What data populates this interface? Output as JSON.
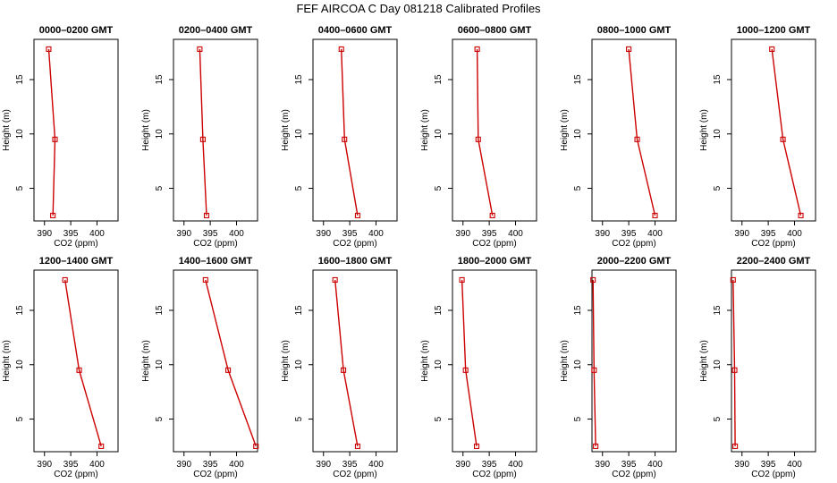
{
  "title": "FEF AIRCOA C  Day 081218  Calibrated Profiles",
  "colors": {
    "profile": "#cc0000",
    "axis": "#000000"
  },
  "chart_data": [
    {
      "type": "line",
      "title": "0000–0200 GMT",
      "xlabel": "CO2 (ppm)",
      "ylabel": "Height (m)",
      "x_ticks": [
        "390",
        "395",
        "400"
      ],
      "y_ticks": [
        "5",
        "10",
        "15"
      ],
      "xlim": [
        388,
        404
      ],
      "ylim": [
        2,
        18.7
      ],
      "series": [
        {
          "points": [
            [
              390.8,
              17.8
            ],
            [
              392.0,
              9.5
            ],
            [
              391.6,
              2.5
            ]
          ]
        }
      ]
    },
    {
      "type": "line",
      "title": "0200–0400 GMT",
      "xlabel": "CO2 (ppm)",
      "ylabel": "Height (m)",
      "x_ticks": [
        "390",
        "395",
        "400"
      ],
      "y_ticks": [
        "5",
        "10",
        "15"
      ],
      "xlim": [
        388,
        404
      ],
      "ylim": [
        2,
        18.7
      ],
      "series": [
        {
          "points": [
            [
              393.0,
              17.8
            ],
            [
              393.6,
              9.5
            ],
            [
              394.3,
              2.5
            ]
          ]
        }
      ]
    },
    {
      "type": "line",
      "title": "0400–0600 GMT",
      "xlabel": "CO2 (ppm)",
      "ylabel": "Height (m)",
      "x_ticks": [
        "390",
        "395",
        "400"
      ],
      "y_ticks": [
        "5",
        "10",
        "15"
      ],
      "xlim": [
        388,
        404
      ],
      "ylim": [
        2,
        18.7
      ],
      "series": [
        {
          "points": [
            [
              393.4,
              17.8
            ],
            [
              394.0,
              9.5
            ],
            [
              396.5,
              2.5
            ]
          ]
        }
      ]
    },
    {
      "type": "line",
      "title": "0600–0800 GMT",
      "xlabel": "CO2 (ppm)",
      "ylabel": "Height (m)",
      "x_ticks": [
        "390",
        "395",
        "400"
      ],
      "y_ticks": [
        "5",
        "10",
        "15"
      ],
      "xlim": [
        388,
        404
      ],
      "ylim": [
        2,
        18.7
      ],
      "series": [
        {
          "points": [
            [
              392.7,
              17.8
            ],
            [
              392.9,
              9.5
            ],
            [
              395.6,
              2.5
            ]
          ]
        }
      ]
    },
    {
      "type": "line",
      "title": "0800–1000 GMT",
      "xlabel": "CO2 (ppm)",
      "ylabel": "Height (m)",
      "x_ticks": [
        "390",
        "395",
        "400"
      ],
      "y_ticks": [
        "5",
        "10",
        "15"
      ],
      "xlim": [
        388,
        404
      ],
      "ylim": [
        2,
        18.7
      ],
      "series": [
        {
          "points": [
            [
              395.0,
              17.8
            ],
            [
              396.6,
              9.5
            ],
            [
              400.0,
              2.5
            ]
          ]
        }
      ]
    },
    {
      "type": "line",
      "title": "1000–1200 GMT",
      "xlabel": "CO2 (ppm)",
      "ylabel": "Height (m)",
      "x_ticks": [
        "390",
        "395",
        "400"
      ],
      "y_ticks": [
        "5",
        "10",
        "15"
      ],
      "xlim": [
        388,
        404
      ],
      "ylim": [
        2,
        18.7
      ],
      "series": [
        {
          "points": [
            [
              395.7,
              17.8
            ],
            [
              397.8,
              9.5
            ],
            [
              401.2,
              2.5
            ]
          ]
        }
      ]
    },
    {
      "type": "line",
      "title": "1200–1400 GMT",
      "xlabel": "CO2 (ppm)",
      "ylabel": "Height (m)",
      "x_ticks": [
        "390",
        "395",
        "400"
      ],
      "y_ticks": [
        "5",
        "10",
        "15"
      ],
      "xlim": [
        388,
        404
      ],
      "ylim": [
        2,
        18.7
      ],
      "series": [
        {
          "points": [
            [
              393.9,
              17.8
            ],
            [
              396.6,
              9.5
            ],
            [
              400.8,
              2.5
            ]
          ]
        }
      ]
    },
    {
      "type": "line",
      "title": "1400–1600 GMT",
      "xlabel": "CO2 (ppm)",
      "ylabel": "Height (m)",
      "x_ticks": [
        "390",
        "395",
        "400"
      ],
      "y_ticks": [
        "5",
        "10",
        "15"
      ],
      "xlim": [
        388,
        404
      ],
      "ylim": [
        2,
        18.7
      ],
      "series": [
        {
          "points": [
            [
              394.1,
              17.8
            ],
            [
              398.4,
              9.5
            ],
            [
              403.7,
              2.5
            ]
          ]
        }
      ]
    },
    {
      "type": "line",
      "title": "1600–1800 GMT",
      "xlabel": "CO2 (ppm)",
      "ylabel": "Height (m)",
      "x_ticks": [
        "390",
        "395",
        "400"
      ],
      "y_ticks": [
        "5",
        "10",
        "15"
      ],
      "xlim": [
        388,
        404
      ],
      "ylim": [
        2,
        18.7
      ],
      "series": [
        {
          "points": [
            [
              392.2,
              17.8
            ],
            [
              393.8,
              9.5
            ],
            [
              396.5,
              2.5
            ]
          ]
        }
      ]
    },
    {
      "type": "line",
      "title": "1800–2000 GMT",
      "xlabel": "CO2 (ppm)",
      "ylabel": "Height (m)",
      "x_ticks": [
        "390",
        "395",
        "400"
      ],
      "y_ticks": [
        "5",
        "10",
        "15"
      ],
      "xlim": [
        388,
        404
      ],
      "ylim": [
        2,
        18.7
      ],
      "series": [
        {
          "points": [
            [
              389.8,
              17.8
            ],
            [
              390.5,
              9.5
            ],
            [
              392.6,
              2.5
            ]
          ]
        }
      ]
    },
    {
      "type": "line",
      "title": "2000–2200 GMT",
      "xlabel": "CO2 (ppm)",
      "ylabel": "Height (m)",
      "x_ticks": [
        "390",
        "395",
        "400"
      ],
      "y_ticks": [
        "5",
        "10",
        "15"
      ],
      "xlim": [
        388,
        404
      ],
      "ylim": [
        2,
        18.7
      ],
      "series": [
        {
          "points": [
            [
              388.2,
              17.8
            ],
            [
              388.4,
              9.5
            ],
            [
              388.7,
              2.5
            ]
          ]
        }
      ]
    },
    {
      "type": "line",
      "title": "2200–2400 GMT",
      "xlabel": "CO2 (ppm)",
      "ylabel": "Height (m)",
      "x_ticks": [
        "390",
        "395",
        "400"
      ],
      "y_ticks": [
        "5",
        "10",
        "15"
      ],
      "xlim": [
        388,
        404
      ],
      "ylim": [
        2,
        18.7
      ],
      "series": [
        {
          "points": [
            [
              388.3,
              17.8
            ],
            [
              388.6,
              9.5
            ],
            [
              388.7,
              2.5
            ]
          ]
        }
      ]
    }
  ]
}
